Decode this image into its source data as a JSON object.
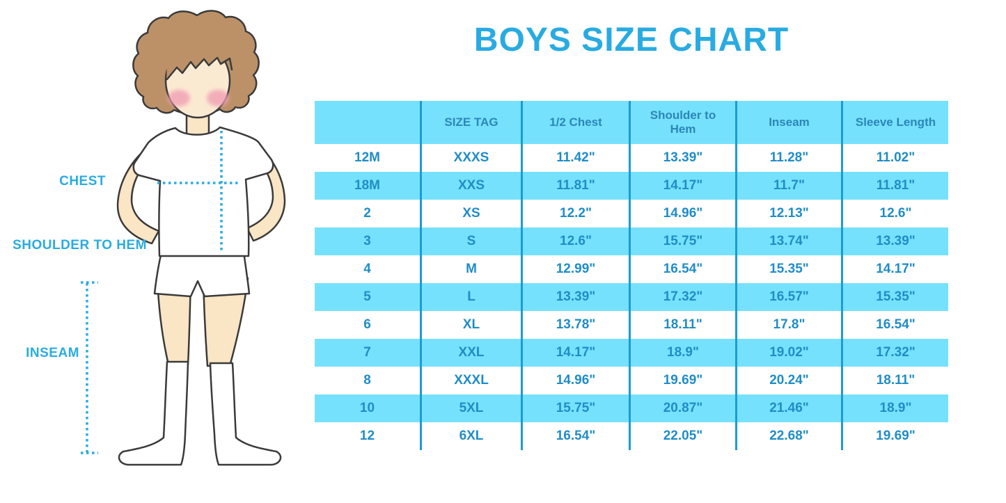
{
  "title": "BOYS SIZE CHART",
  "illustration": {
    "labels": {
      "chest": "CHEST",
      "shoulder_to_hem": "SHOULDER TO HEM",
      "inseam": "INSEAM"
    }
  },
  "colors": {
    "accent_blue": "#29ABE2",
    "row_cyan": "#76E1FC",
    "grid_line_blue": "#1B9CD3",
    "value_text_blue": "#1F8DC6",
    "header_text_blue": "#2B86B8",
    "hair_brown": "#BC9168",
    "skin": "#FAE5C4",
    "cheek_pink": "#F09FB4"
  },
  "chart_data": {
    "type": "table",
    "title": "BOYS SIZE CHART",
    "columns": [
      "",
      "SIZE TAG",
      "1/2 Chest",
      "Shoulder to Hem",
      "Inseam",
      "Sleeve Length"
    ],
    "rows": [
      [
        "12M",
        "XXXS",
        "11.42\"",
        "13.39\"",
        "11.28\"",
        "11.02\""
      ],
      [
        "18M",
        "XXS",
        "11.81\"",
        "14.17\"",
        "11.7\"",
        "11.81\""
      ],
      [
        "2",
        "XS",
        "12.2\"",
        "14.96\"",
        "12.13\"",
        "12.6\""
      ],
      [
        "3",
        "S",
        "12.6\"",
        "15.75\"",
        "13.74\"",
        "13.39\""
      ],
      [
        "4",
        "M",
        "12.99\"",
        "16.54\"",
        "15.35\"",
        "14.17\""
      ],
      [
        "5",
        "L",
        "13.39\"",
        "17.32\"",
        "16.57\"",
        "15.35\""
      ],
      [
        "6",
        "XL",
        "13.78\"",
        "18.11\"",
        "17.8\"",
        "16.54\""
      ],
      [
        "7",
        "XXL",
        "14.17\"",
        "18.9\"",
        "19.02\"",
        "17.32\""
      ],
      [
        "8",
        "XXXL",
        "14.96\"",
        "19.69\"",
        "20.24\"",
        "18.11\""
      ],
      [
        "10",
        "5XL",
        "15.75\"",
        "20.87\"",
        "21.46\"",
        "18.9\""
      ],
      [
        "12",
        "6XL",
        "16.54\"",
        "22.05\"",
        "22.68\"",
        "19.69\""
      ]
    ]
  }
}
